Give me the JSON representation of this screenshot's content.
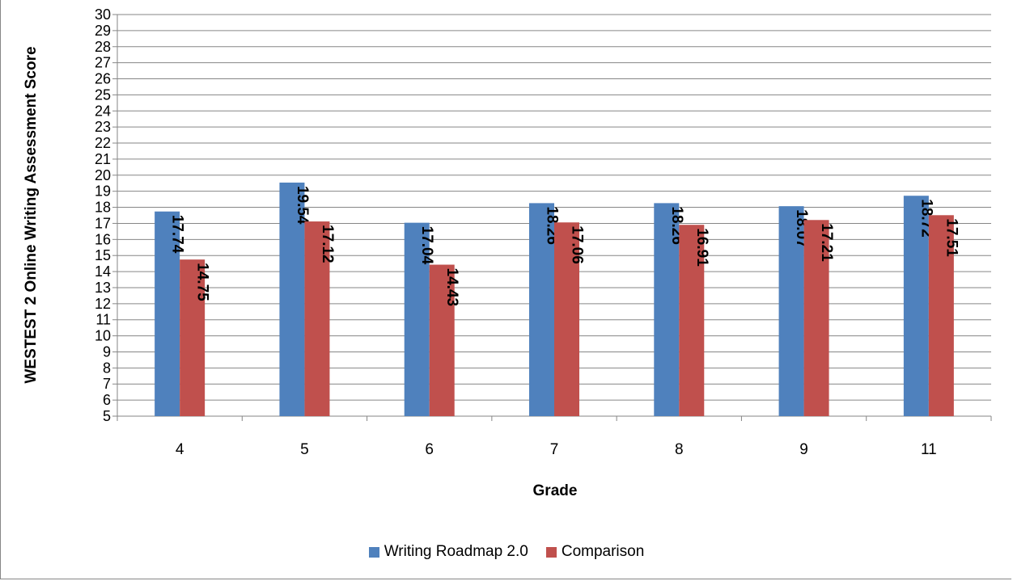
{
  "chart_data": {
    "type": "bar",
    "categories": [
      "4",
      "5",
      "6",
      "7",
      "8",
      "9",
      "11"
    ],
    "series": [
      {
        "name": "Writing Roadmap 2.0",
        "color": "#4F81BD",
        "values": [
          17.74,
          19.54,
          17.04,
          18.26,
          18.26,
          18.07,
          18.72
        ]
      },
      {
        "name": "Comparison",
        "color": "#C0504D",
        "values": [
          14.75,
          17.12,
          14.43,
          17.06,
          16.91,
          17.21,
          17.51
        ]
      }
    ],
    "data_labels": [
      [
        "17.74",
        "19.54",
        "17.04",
        "18.26",
        "18.26",
        "18.07",
        "18.72"
      ],
      [
        "14.75",
        "17.12",
        "14.43",
        "17.06",
        "16.91",
        "17.21",
        "17.51"
      ]
    ],
    "xlabel": "Grade",
    "ylabel": "WESTEST 2 Online Writing Assessment Score",
    "ylim": [
      5,
      30
    ],
    "yticks": [
      "5",
      "6",
      "7",
      "8",
      "9",
      "10",
      "11",
      "12",
      "13",
      "14",
      "15",
      "16",
      "17",
      "18",
      "19",
      "20",
      "21",
      "22",
      "23",
      "24",
      "25",
      "26",
      "27",
      "28",
      "29",
      "30"
    ],
    "grid": true,
    "legend_position": "bottom"
  }
}
